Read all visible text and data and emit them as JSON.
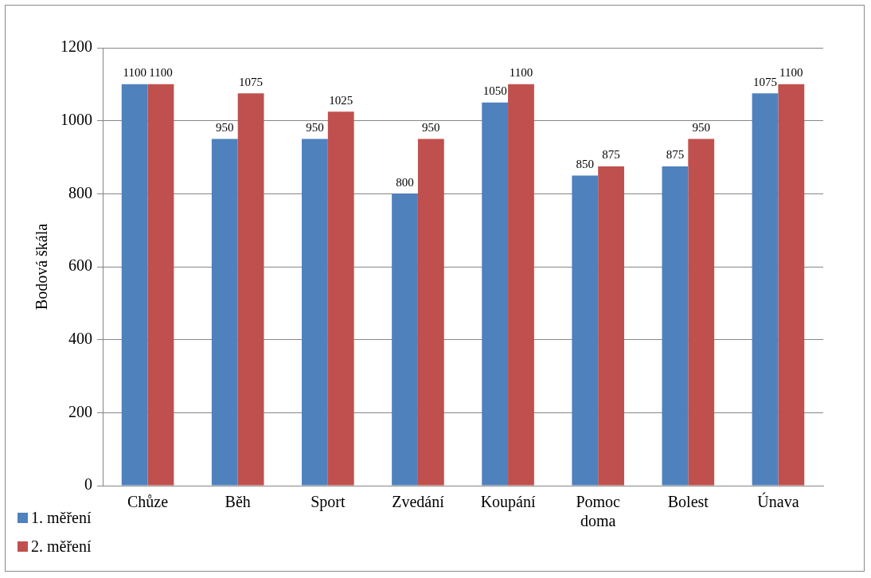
{
  "chart_data": {
    "type": "bar",
    "ylabel": "Bodová škála",
    "categories": [
      "Chůze",
      "Běh",
      "Sport",
      "Zvedání",
      "Koupání",
      "Pomoc doma",
      "Bolest",
      "Únava"
    ],
    "series": [
      {
        "name": "1. měření",
        "color": "#4f81bd",
        "values": [
          1100,
          950,
          950,
          800,
          1050,
          850,
          875,
          1075
        ]
      },
      {
        "name": "2. měření",
        "color": "#c0504d",
        "values": [
          1100,
          1075,
          1025,
          950,
          1100,
          875,
          950,
          1100
        ]
      }
    ],
    "ylim": [
      0,
      1200
    ],
    "yticks": [
      0,
      200,
      400,
      600,
      800,
      1000,
      1200
    ],
    "grid": "y",
    "legend": "bottom left",
    "data_labels": true
  }
}
